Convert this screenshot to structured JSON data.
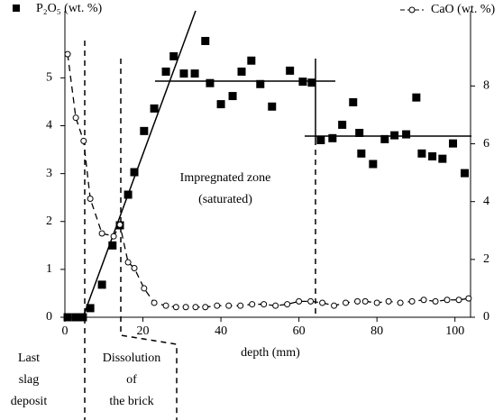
{
  "chart_data": {
    "type": "scatter",
    "x_label": "depth (mm)",
    "xlim": [
      0,
      104
    ],
    "xticks": [
      0,
      20,
      40,
      60,
      80,
      100
    ],
    "ylim": [
      0,
      6.4
    ],
    "yticks": [
      0,
      1,
      2,
      3,
      4,
      5
    ],
    "y2lim": [
      0,
      10.6
    ],
    "y2ticks": [
      0,
      2,
      4,
      6,
      8
    ],
    "grid": false,
    "series": [
      {
        "name": "P₂O₅ (wt. %)",
        "color": "#000000",
        "marker": "square",
        "x": [
          0.7,
          2.8,
          4.6,
          6.5,
          9.5,
          12.2,
          14.1,
          16.2,
          17.8,
          20.3,
          22.9,
          25.9,
          27.9,
          30.5,
          33.3,
          36,
          37.2,
          40,
          43,
          45.3,
          47.8,
          50.1,
          53.1,
          57.7,
          61,
          63.3,
          65.6,
          68.6,
          71.1,
          73.9,
          75.5,
          76,
          79,
          82,
          84.5,
          87.5,
          90.1,
          91.5,
          94.2,
          96.8,
          99.5,
          102.5
        ],
        "values": [
          0,
          0,
          0,
          0.19,
          0.68,
          1.5,
          1.92,
          2.56,
          3.03,
          3.89,
          4.36,
          5.13,
          5.45,
          5.09,
          5.09,
          5.77,
          4.89,
          4.45,
          4.62,
          5.13,
          5.36,
          4.87,
          4.4,
          5.15,
          4.92,
          4.9,
          3.7,
          3.74,
          4.02,
          4.49,
          3.85,
          3.42,
          3.2,
          3.72,
          3.8,
          3.82,
          4.59,
          3.42,
          3.36,
          3.31,
          3.63,
          3.01
        ]
      },
      {
        "name": "CaO (wt. %)",
        "color": "#000000",
        "marker": "circle",
        "axis": "y2",
        "x": [
          0.7,
          2.8,
          4.8,
          6.5,
          9.5,
          12.5,
          14.1,
          16.2,
          17.8,
          20.3,
          22.9,
          25.9,
          28.5,
          31,
          33.5,
          36,
          39,
          42,
          45,
          48,
          51,
          54,
          57,
          60,
          63,
          66,
          69,
          72,
          75,
          77,
          80,
          83,
          86,
          89,
          92,
          95,
          98,
          101,
          103.5
        ],
        "values": [
          9.1,
          6.9,
          6.1,
          4.1,
          2.9,
          2.8,
          3.2,
          1.9,
          1.7,
          1.0,
          0.5,
          0.4,
          0.35,
          0.35,
          0.35,
          0.35,
          0.4,
          0.4,
          0.4,
          0.45,
          0.45,
          0.4,
          0.45,
          0.55,
          0.55,
          0.5,
          0.4,
          0.5,
          0.55,
          0.55,
          0.5,
          0.55,
          0.5,
          0.55,
          0.6,
          0.55,
          0.6,
          0.6,
          0.65
        ]
      }
    ],
    "annotations": {
      "zone": [
        "Impregnated zone",
        "(saturated)"
      ],
      "slag": [
        "Last",
        "slag",
        "deposit"
      ],
      "brick": [
        "Dissolution",
        "of",
        "the brick"
      ]
    }
  }
}
